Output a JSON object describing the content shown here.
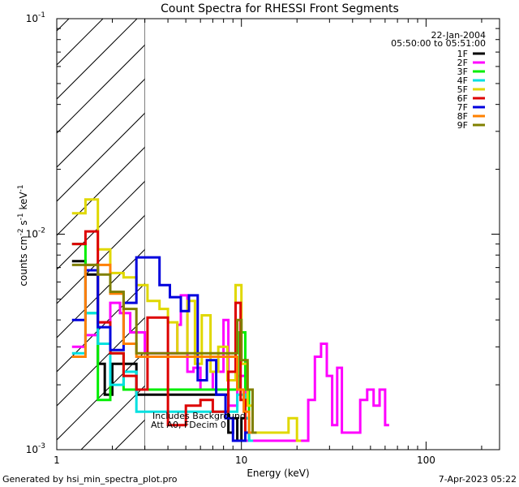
{
  "chart_data": {
    "type": "line",
    "title": "Count Spectra for RHESSI Front Segments",
    "xlabel": "Energy (keV)",
    "ylabel_parts": {
      "base": "counts cm",
      "exp1": "-2",
      "mid": " s",
      "exp2": "-1",
      "unit": " keV",
      "exp3": "-1"
    },
    "x_scale": "log",
    "y_scale": "log",
    "xlim": [
      1,
      250
    ],
    "ylim": [
      0.001,
      0.1
    ],
    "x_ticks": [
      {
        "v": 1,
        "label": "1"
      },
      {
        "v": 10,
        "label": "10"
      },
      {
        "v": 100,
        "label": "100"
      }
    ],
    "y_ticks": [
      {
        "v": 0.001,
        "base": "10",
        "exp": "-3"
      },
      {
        "v": 0.01,
        "base": "10",
        "exp": "-2"
      },
      {
        "v": 0.1,
        "base": "10",
        "exp": "-1"
      }
    ],
    "hatched_region": [
      1,
      3
    ],
    "date": "22-Jan-2004",
    "time_range": "05:50:00 to 05:51:00",
    "annotation": [
      "Includes Background",
      "Att A0, FDecim 0"
    ],
    "footer_left": "Generated by hsi_min_spectra_plot.pro",
    "footer_right": "7-Apr-2023 05:22",
    "legend_position": "top-right",
    "series": [
      {
        "name": "1F",
        "color": "#000000",
        "points": [
          [
            1.21,
            0.0075
          ],
          [
            1.43,
            0.0065
          ],
          [
            1.67,
            0.0025
          ],
          [
            1.82,
            0.0018
          ],
          [
            2.0,
            0.0025
          ],
          [
            2.3,
            0.0025
          ],
          [
            2.7,
            0.0018
          ],
          [
            8.5,
            0.0012
          ],
          [
            9.0,
            0.0014
          ],
          [
            9.5,
            0.0011
          ],
          [
            10.0,
            0.0014
          ],
          [
            11.0,
            0.0011
          ]
        ]
      },
      {
        "name": "2F",
        "color": "#ff00ff",
        "points": [
          [
            1.21,
            0.003
          ],
          [
            1.43,
            0.0034
          ],
          [
            1.67,
            0.0039
          ],
          [
            1.95,
            0.0048
          ],
          [
            2.2,
            0.0043
          ],
          [
            2.5,
            0.0035
          ],
          [
            3.0,
            0.0028
          ],
          [
            4.5,
            0.0038
          ],
          [
            4.7,
            0.0052
          ],
          [
            5.1,
            0.0023
          ],
          [
            5.5,
            0.0024
          ],
          [
            6.0,
            0.0019
          ],
          [
            7.0,
            0.0023
          ],
          [
            8.0,
            0.004
          ],
          [
            8.5,
            0.0016
          ],
          [
            9.5,
            0.0022
          ],
          [
            10.5,
            0.0011
          ],
          [
            20.0,
            0.0011
          ],
          [
            23.0,
            0.0017
          ],
          [
            25.0,
            0.0027
          ],
          [
            27.0,
            0.0031
          ],
          [
            29.0,
            0.0022
          ],
          [
            31.0,
            0.0013
          ],
          [
            33.0,
            0.0024
          ],
          [
            35.0,
            0.0012
          ],
          [
            40.0,
            0.0012
          ],
          [
            44.0,
            0.0017
          ],
          [
            48.0,
            0.0019
          ],
          [
            52.0,
            0.0016
          ],
          [
            56.0,
            0.0019
          ],
          [
            60.0,
            0.0013
          ]
        ]
      },
      {
        "name": "3F",
        "color": "#00ee00",
        "points": [
          [
            1.21,
            0.009
          ],
          [
            1.43,
            0.0043
          ],
          [
            1.67,
            0.0017
          ],
          [
            1.95,
            0.0028
          ],
          [
            2.3,
            0.0019
          ],
          [
            9.8,
            0.0035
          ],
          [
            10.5,
            0.0019
          ],
          [
            11.0,
            0.0012
          ]
        ]
      },
      {
        "name": "4F",
        "color": "#00e0e0",
        "points": [
          [
            1.21,
            0.0028
          ],
          [
            1.43,
            0.0043
          ],
          [
            1.67,
            0.0031
          ],
          [
            1.95,
            0.002
          ],
          [
            2.3,
            0.0023
          ],
          [
            2.7,
            0.0015
          ],
          [
            9.5,
            0.0018
          ],
          [
            10.5,
            0.0014
          ],
          [
            11.0,
            0.0011
          ]
        ]
      },
      {
        "name": "5F",
        "color": "#e0d800",
        "points": [
          [
            1.21,
            0.0125
          ],
          [
            1.43,
            0.0145
          ],
          [
            1.67,
            0.0085
          ],
          [
            1.95,
            0.0066
          ],
          [
            2.3,
            0.0063
          ],
          [
            2.7,
            0.0058
          ],
          [
            3.1,
            0.0049
          ],
          [
            3.6,
            0.0045
          ],
          [
            4.0,
            0.0039
          ],
          [
            4.5,
            0.0028
          ],
          [
            5.1,
            0.0049
          ],
          [
            5.6,
            0.0025
          ],
          [
            6.1,
            0.0042
          ],
          [
            6.8,
            0.0023
          ],
          [
            7.5,
            0.003
          ],
          [
            8.4,
            0.0021
          ],
          [
            9.3,
            0.0058
          ],
          [
            10.0,
            0.0025
          ],
          [
            10.8,
            0.0016
          ],
          [
            11.5,
            0.0012
          ],
          [
            18.0,
            0.0014
          ],
          [
            20.0,
            0.0011
          ]
        ]
      },
      {
        "name": "6F",
        "color": "#dd0000",
        "points": [
          [
            1.21,
            0.009
          ],
          [
            1.43,
            0.0103
          ],
          [
            1.67,
            0.0039
          ],
          [
            1.95,
            0.0028
          ],
          [
            2.3,
            0.0022
          ],
          [
            2.7,
            0.0019
          ],
          [
            3.1,
            0.0041
          ],
          [
            4.0,
            0.0013
          ],
          [
            5.0,
            0.0016
          ],
          [
            6.0,
            0.0017
          ],
          [
            7.0,
            0.0015
          ],
          [
            8.5,
            0.0023
          ],
          [
            9.3,
            0.0048
          ],
          [
            9.9,
            0.0017
          ],
          [
            10.5,
            0.0012
          ]
        ]
      },
      {
        "name": "7F",
        "color": "#0000dd",
        "points": [
          [
            1.21,
            0.004
          ],
          [
            1.43,
            0.0068
          ],
          [
            1.67,
            0.0037
          ],
          [
            1.95,
            0.0029
          ],
          [
            2.3,
            0.0048
          ],
          [
            2.7,
            0.0078
          ],
          [
            3.1,
            0.0078
          ],
          [
            3.6,
            0.0058
          ],
          [
            4.1,
            0.0051
          ],
          [
            4.7,
            0.0044
          ],
          [
            5.2,
            0.0052
          ],
          [
            5.8,
            0.0021
          ],
          [
            6.5,
            0.0026
          ],
          [
            7.3,
            0.0018
          ],
          [
            8.2,
            0.0014
          ],
          [
            9.0,
            0.0011
          ],
          [
            10.5,
            0.0012
          ]
        ]
      },
      {
        "name": "8F",
        "color": "#ff8000",
        "points": [
          [
            1.21,
            0.0027
          ],
          [
            1.43,
            0.0072
          ],
          [
            1.67,
            0.0072
          ],
          [
            1.95,
            0.0053
          ],
          [
            2.3,
            0.0031
          ],
          [
            2.7,
            0.0027
          ],
          [
            9.5,
            0.0019
          ],
          [
            10.3,
            0.0015
          ],
          [
            11.0,
            0.0012
          ]
        ]
      },
      {
        "name": "9F",
        "color": "#808000",
        "points": [
          [
            1.21,
            0.0072
          ],
          [
            1.43,
            0.0072
          ],
          [
            1.67,
            0.0065
          ],
          [
            1.95,
            0.0054
          ],
          [
            2.3,
            0.0045
          ],
          [
            2.7,
            0.0028
          ],
          [
            9.5,
            0.004
          ],
          [
            10.0,
            0.0026
          ],
          [
            10.8,
            0.0019
          ],
          [
            11.5,
            0.0012
          ]
        ]
      }
    ]
  }
}
